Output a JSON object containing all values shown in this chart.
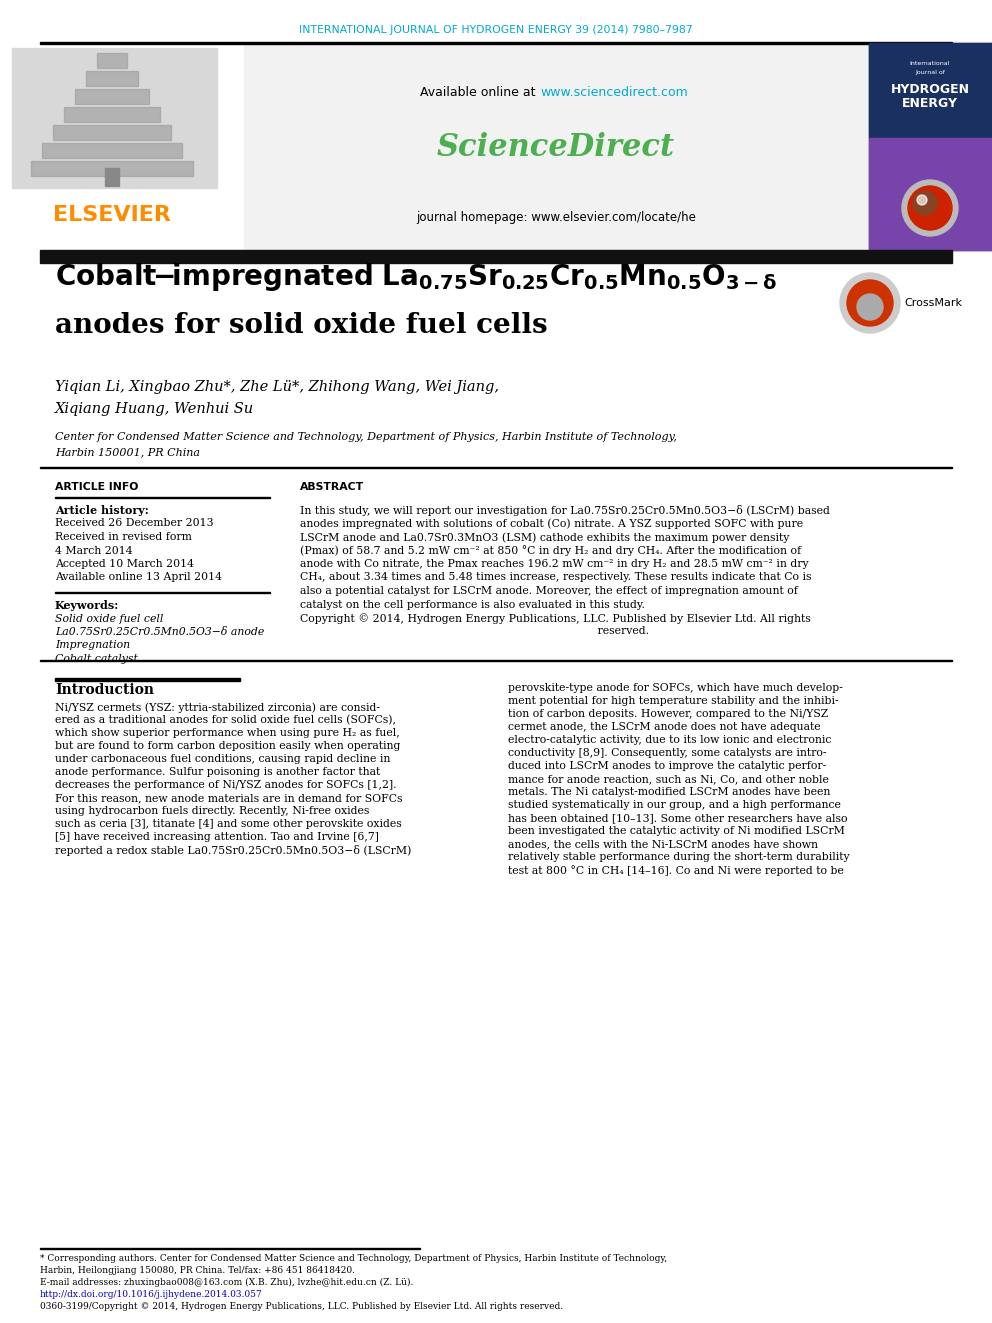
{
  "journal_header": "INTERNATIONAL JOURNAL OF HYDROGEN ENERGY 39 (2014) 7980–7987",
  "header_color": "#00AACC",
  "url_color": "#00AACC",
  "sciencedirect_color": "#4CAF50",
  "elsevier_color": "#FF8C00",
  "footnote_url_color": "#0000CC",
  "dark_bar_color": "#111111",
  "page_bg": "#ffffff",
  "available_online_text": "Available online at ",
  "url_sciencedirect": "www.sciencedirect.com",
  "sciencedirect_text": "ScienceDirect",
  "journal_homepage": "journal homepage: www.elsevier.com/locate/he",
  "authors": "Yiqian Li, Xingbao Zhu*, Zhe Lü*, Zhihong Wang, Wei Jiang,\nXiqiang Huang, Wenhui Su",
  "affiliation_line1": "Center for Condensed Matter Science and Technology, Department of Physics, Harbin Institute of Technology,",
  "affiliation_line2": "Harbin 150001, PR China",
  "article_info_header": "ARTICLE INFO",
  "abstract_header": "ABSTRACT",
  "article_history_label": "Article history:",
  "received1": "Received 26 December 2013",
  "received2": "Received in revised form",
  "received2b": "4 March 2014",
  "accepted": "Accepted 10 March 2014",
  "available_online2": "Available online 13 April 2014",
  "keywords_label": "Keywords:",
  "kw1": "Solid oxide fuel cell",
  "kw2": "La0.75Sr0.25Cr0.5Mn0.5O3−δ anode",
  "kw3": "Impregnation",
  "kw4": "Cobalt catalyst",
  "abstract_text_lines": [
    "In this study, we will report our investigation for La0.75Sr0.25Cr0.5Mn0.5O3−δ (LSCrM) based",
    "anodes impregnated with solutions of cobalt (Co) nitrate. A YSZ supported SOFC with pure",
    "LSCrM anode and La0.7Sr0.3MnO3 (LSM) cathode exhibits the maximum power density",
    "(Pmax) of 58.7 and 5.2 mW cm⁻² at 850 °C in dry H₂ and dry CH₄. After the modification of",
    "anode with Co nitrate, the Pmax reaches 196.2 mW cm⁻² in dry H₂ and 28.5 mW cm⁻² in dry",
    "CH₄, about 3.34 times and 5.48 times increase, respectively. These results indicate that Co is",
    "also a potential catalyst for LSCrM anode. Moreover, the effect of impregnation amount of",
    "catalyst on the cell performance is also evaluated in this study.",
    "Copyright © 2014, Hydrogen Energy Publications, LLC. Published by Elsevier Ltd. All rights",
    "                                                                                     reserved."
  ],
  "intro_header": "Introduction",
  "intro_left_lines": [
    "Ni/YSZ cermets (YSZ: yttria-stabilized zirconia) are consid-",
    "ered as a traditional anodes for solid oxide fuel cells (SOFCs),",
    "which show superior performance when using pure H₂ as fuel,",
    "but are found to form carbon deposition easily when operating",
    "under carbonaceous fuel conditions, causing rapid decline in",
    "anode performance. Sulfur poisoning is another factor that",
    "decreases the performance of Ni/YSZ anodes for SOFCs [1,2].",
    "For this reason, new anode materials are in demand for SOFCs",
    "using hydrocarbon fuels directly. Recently, Ni-free oxides",
    "such as ceria [3], titanate [4] and some other perovskite oxides",
    "[5] have received increasing attention. Tao and Irvine [6,7]",
    "reported a redox stable La0.75Sr0.25Cr0.5Mn0.5O3−δ (LSCrM)"
  ],
  "intro_right_lines": [
    "perovskite-type anode for SOFCs, which have much develop-",
    "ment potential for high temperature stability and the inhibi-",
    "tion of carbon deposits. However, compared to the Ni/YSZ",
    "cermet anode, the LSCrM anode does not have adequate",
    "electro-catalytic activity, due to its low ionic and electronic",
    "conductivity [8,9]. Consequently, some catalysts are intro-",
    "duced into LSCrM anodes to improve the catalytic perfor-",
    "mance for anode reaction, such as Ni, Co, and other noble",
    "metals. The Ni catalyst-modified LSCrM anodes have been",
    "studied systematically in our group, and a high performance",
    "has been obtained [10–13]. Some other researchers have also",
    "been investigated the catalytic activity of Ni modified LSCrM",
    "anodes, the cells with the Ni-LSCrM anodes have shown",
    "relatively stable performance during the short-term durability",
    "test at 800 °C in CH₄ [14–16]. Co and Ni were reported to be"
  ],
  "footnote_lines": [
    "* Corresponding authors. Center for Condensed Matter Science and Technology, Department of Physics, Harbin Institute of Technology,",
    "Harbin, Heilongjiang 150080, PR China. Tel/fax: +86 451 86418420.",
    "E-mail addresses: zhuxingbao008@163.com (X.B. Zhu), lvzhe@hit.edu.cn (Z. Lü).",
    "http://dx.doi.org/10.1016/j.ijhydene.2014.03.057",
    "0360-3199/Copyright © 2014, Hydrogen Energy Publications, LLC. Published by Elsevier Ltd. All rights reserved."
  ]
}
